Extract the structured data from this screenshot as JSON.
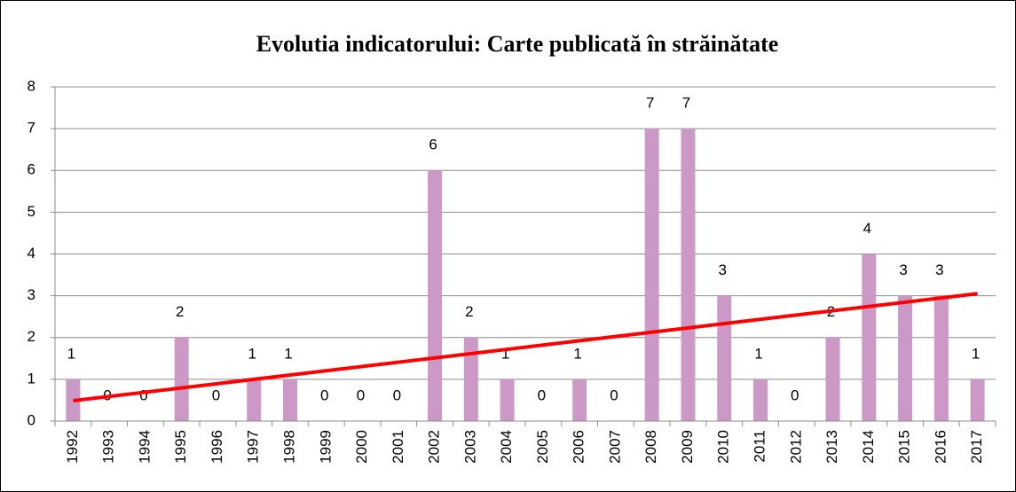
{
  "chart_data": {
    "type": "bar",
    "title": "Evolutia indicatorului: Carte publicată în străinătate",
    "categories": [
      "1992",
      "1993",
      "1994",
      "1995",
      "1996",
      "1997",
      "1998",
      "1999",
      "2000",
      "2001",
      "2002",
      "2003",
      "2004",
      "2005",
      "2006",
      "2007",
      "2008",
      "2009",
      "2010",
      "2011",
      "2012",
      "2013",
      "2014",
      "2015",
      "2016",
      "2017"
    ],
    "values": [
      1,
      0,
      0,
      2,
      0,
      1,
      1,
      0,
      0,
      0,
      6,
      2,
      1,
      0,
      1,
      0,
      7,
      7,
      3,
      1,
      0,
      2,
      4,
      3,
      3,
      1
    ],
    "color": "#cc99c6",
    "ylim": [
      0,
      8
    ],
    "yticks": [
      0,
      1,
      2,
      3,
      4,
      5,
      6,
      7,
      8
    ],
    "grid": true,
    "trendline": {
      "type": "linear",
      "color": "#ff0000"
    }
  }
}
